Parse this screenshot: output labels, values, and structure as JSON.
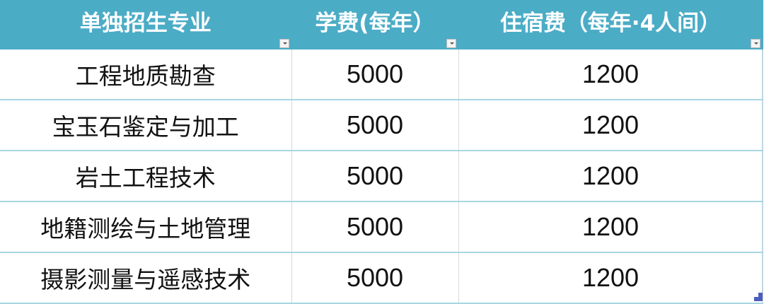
{
  "table": {
    "headers": [
      "单独招生专业",
      "学费(每年）",
      "住宿费（每年·4人间）"
    ],
    "header_bg": "#4BACC6",
    "rows": [
      [
        "工程地质勘查",
        "5000",
        "1200"
      ],
      [
        "宝玉石鉴定与加工",
        "5000",
        "1200"
      ],
      [
        "岩土工程技术",
        "5000",
        "1200"
      ],
      [
        "地籍测绘与土地管理",
        "5000",
        "1200"
      ],
      [
        "摄影测量与遥感技术",
        "5000",
        "1200"
      ]
    ],
    "filter_icon": "dropdown-arrow-icon"
  }
}
